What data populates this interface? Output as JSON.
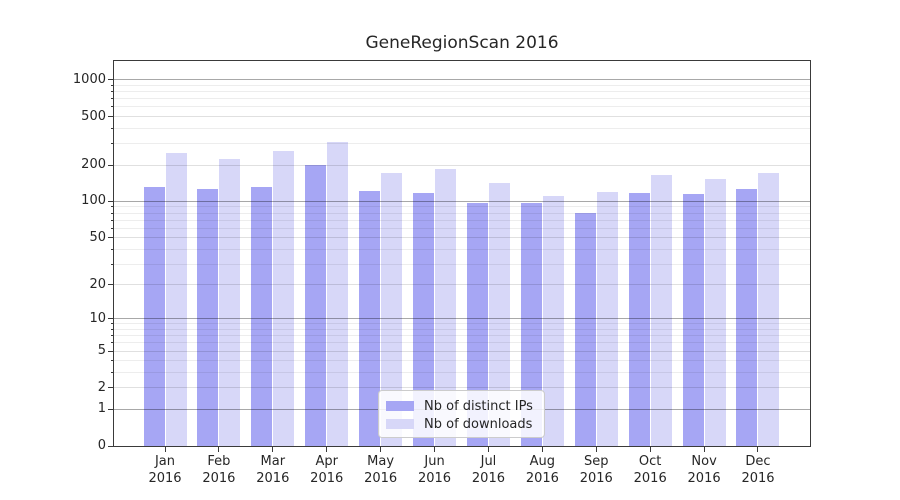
{
  "title": "GeneRegionScan 2016",
  "chart_data": {
    "type": "bar",
    "categories": [
      "Jan",
      "Feb",
      "Mar",
      "Apr",
      "May",
      "Jun",
      "Jul",
      "Aug",
      "Sep",
      "Oct",
      "Nov",
      "Dec"
    ],
    "x_year_label": "2016",
    "series": [
      {
        "name": "Nb of distinct IPs",
        "color": "#a6a6f4",
        "values": [
          133,
          126,
          131,
          200,
          121,
          117,
          98,
          97,
          81,
          118,
          115,
          126
        ]
      },
      {
        "name": "Nb of downloads",
        "color": "#d7d7f8",
        "values": [
          249,
          226,
          259,
          308,
          171,
          184,
          141,
          110,
          120,
          165,
          152,
          173
        ]
      }
    ],
    "y_ticks": [
      0,
      1,
      2,
      5,
      10,
      20,
      50,
      100,
      200,
      500,
      1000
    ],
    "y_scale": "log10(value+1)",
    "ylim": [
      0,
      1430
    ],
    "xlabel": "",
    "ylabel": "",
    "grid": "horizontal",
    "legend_position": "bottom-center"
  },
  "colors": {
    "bar_distinct_ips": "#a6a6f4",
    "bar_downloads": "#d7d7f8",
    "axis": "#3a3a3a",
    "grid_decade": "rgba(0,0,0,0.34)",
    "grid_labeled_minor": "rgba(0,0,0,0.12)",
    "grid_minor": "rgba(0,0,0,0.07)",
    "text": "#262626",
    "legend_border": "#cccccc"
  }
}
